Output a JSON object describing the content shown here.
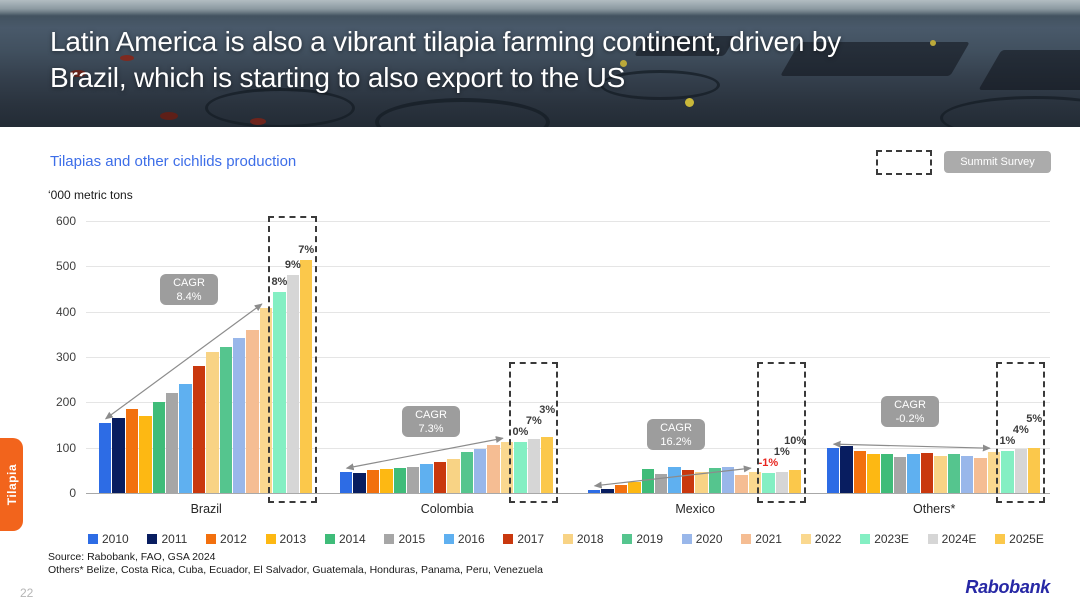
{
  "slide": {
    "title_line1": "Latin America is also a vibrant tilapia farming continent, driven by",
    "title_line2": "Brazil, which is starting to also export to the US",
    "side_tab": "Tilapia",
    "summit_survey_label": "Summit Survey",
    "source_line1": "Source: Rabobank, FAO, GSA 2024",
    "source_line2": "Others* Belize, Costa Rica, Cuba, Ecuador, El Salvador, Guatemala, Honduras, Panama, Peru, Venezuela",
    "page_number": "22",
    "logo": "Rabobank"
  },
  "chart_data": {
    "type": "bar",
    "title": "Tilapias and other cichlids production",
    "ylabel": "‘000 metric tons",
    "ylim": [
      0,
      600
    ],
    "yticks": [
      0,
      100,
      200,
      300,
      400,
      500,
      600
    ],
    "grid": true,
    "legend_position": "bottom",
    "cagr_prefix": "CAGR",
    "categories": [
      "2010",
      "2011",
      "2012",
      "2013",
      "2014",
      "2015",
      "2016",
      "2017",
      "2018",
      "2019",
      "2020",
      "2021",
      "2022",
      "2023E",
      "2024E",
      "2025E"
    ],
    "colors": [
      "#2d6ce5",
      "#081d60",
      "#f2700e",
      "#fdb813",
      "#3fbc79",
      "#a6a6a6",
      "#5fb0f0",
      "#c9380e",
      "#f8d385",
      "#55c58e",
      "#99b7ea",
      "#f5bd93",
      "#fad88f",
      "#84efc3",
      "#d6d6d6",
      "#fbc84b"
    ],
    "negative_label_color": "#e8251f",
    "default_label_color": "#3c3c3c",
    "groups": [
      {
        "label": "Brazil",
        "cagr": "8.4%",
        "values": [
          155,
          166,
          185,
          170,
          200,
          220,
          241,
          280,
          312,
          323,
          343,
          360,
          408,
          443,
          480,
          513
        ],
        "forecast_labels": [
          {
            "text": "8%",
            "color": "#3c3c3c"
          },
          {
            "text": "9%",
            "color": "#3c3c3c"
          },
          {
            "text": "7%",
            "color": "#3c3c3c"
          }
        ]
      },
      {
        "label": "Colombia",
        "cagr": "7.3%",
        "values": [
          46,
          45,
          50,
          54,
          56,
          58,
          63,
          68,
          75,
          91,
          97,
          105,
          112,
          113,
          120,
          124
        ],
        "forecast_labels": [
          {
            "text": "0%",
            "color": "#3c3c3c"
          },
          {
            "text": "7%",
            "color": "#3c3c3c"
          },
          {
            "text": "3%",
            "color": "#3c3c3c"
          }
        ]
      },
      {
        "label": "Mexico",
        "cagr": "16.2%",
        "values": [
          7,
          9,
          18,
          24,
          52,
          41,
          57,
          51,
          47,
          55,
          58,
          40,
          46,
          45,
          46,
          51
        ],
        "forecast_labels": [
          {
            "text": "-1%",
            "color": "#e8251f"
          },
          {
            "text": "1%",
            "color": "#3c3c3c"
          },
          {
            "text": "10%",
            "color": "#3c3c3c"
          }
        ]
      },
      {
        "label": "Others*",
        "cagr": "-0.2%",
        "values": [
          99,
          103,
          93,
          85,
          87,
          80,
          86,
          89,
          82,
          85,
          82,
          78,
          90,
          93,
          96,
          99
        ],
        "forecast_labels": [
          {
            "text": "1%",
            "color": "#3c3c3c"
          },
          {
            "text": "4%",
            "color": "#3c3c3c"
          },
          {
            "text": "5%",
            "color": "#3c3c3c"
          }
        ]
      }
    ]
  }
}
